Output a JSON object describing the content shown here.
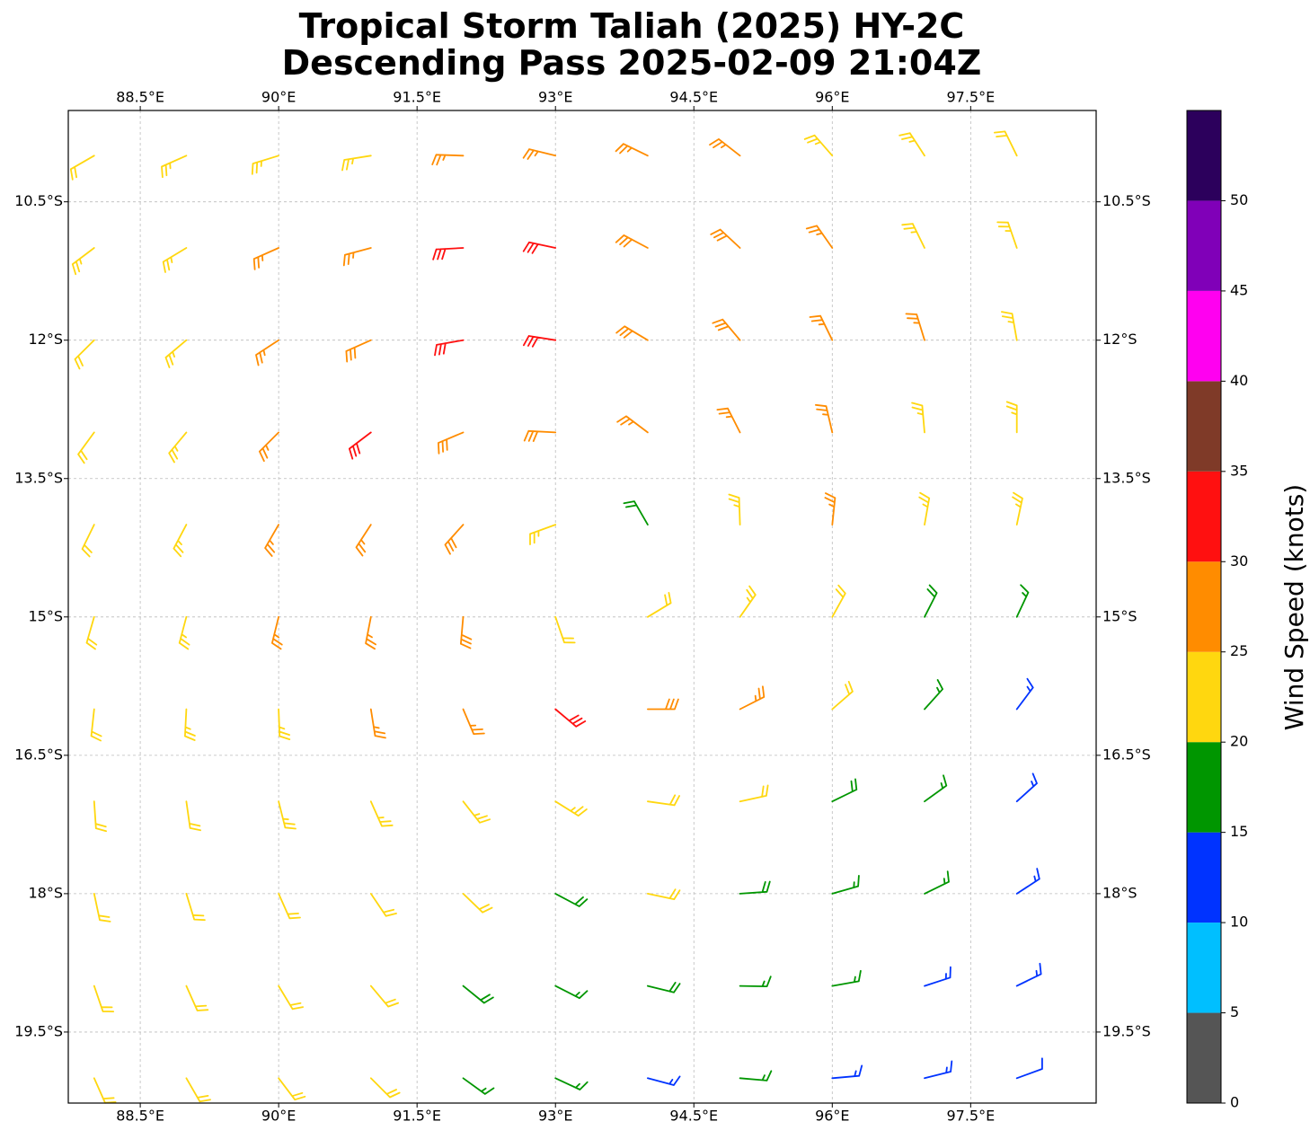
{
  "map": {
    "title": [
      "Tropical Storm Taliah (2025) HY-2C",
      "Descending Pass 2025-02-09 21:04Z"
    ],
    "xlim": [
      87.72,
      98.86
    ],
    "ylim": [
      -20.27,
      -9.51
    ],
    "xticks": [
      {
        "value": 88.5,
        "label": "88.5°E"
      },
      {
        "value": 90,
        "label": "90°E"
      },
      {
        "value": 91.5,
        "label": "91.5°E"
      },
      {
        "value": 93,
        "label": "93°E"
      },
      {
        "value": 94.5,
        "label": "94.5°E"
      },
      {
        "value": 96,
        "label": "96°E"
      },
      {
        "value": 97.5,
        "label": "97.5°E"
      }
    ],
    "yticks": [
      {
        "value": -10.5,
        "label": "10.5°S"
      },
      {
        "value": -12,
        "label": "12°S"
      },
      {
        "value": -13.5,
        "label": "13.5°S"
      },
      {
        "value": -15,
        "label": "15°S"
      },
      {
        "value": -16.5,
        "label": "16.5°S"
      },
      {
        "value": -18,
        "label": "18°S"
      },
      {
        "value": -19.5,
        "label": "19.5°S"
      }
    ],
    "grid": true,
    "colorbar": {
      "label": "Wind Speed (knots)",
      "clim": [
        0,
        55
      ],
      "ticks": [
        0,
        5,
        10,
        15,
        20,
        25,
        30,
        35,
        40,
        45,
        50
      ],
      "colors": [
        "#555555",
        "#00bfff",
        "#0033ff",
        "#009600",
        "#ffd70f",
        "#ff8c00",
        "#ff1010",
        "#7f3a28",
        "#ff00f0",
        "#8000b8",
        "#2c005c"
      ]
    },
    "barbs": {
      "lon": [
        88,
        89,
        90,
        91,
        92,
        93,
        94,
        95,
        96,
        97,
        98
      ],
      "lat": [
        -10,
        -11,
        -12,
        -13,
        -14,
        -15,
        -16,
        -17,
        -18,
        -19,
        -20
      ],
      "speed": [
        [
          22,
          23,
          23,
          24,
          26,
          27,
          27,
          26,
          24,
          23,
          22
        ],
        [
          23,
          24,
          26,
          27,
          32,
          31,
          28,
          28,
          27,
          24,
          23
        ],
        [
          22,
          24,
          26,
          28,
          32,
          31,
          29,
          28,
          27,
          26,
          23
        ],
        [
          22,
          23,
          26,
          31,
          29,
          28,
          27,
          27,
          26,
          24,
          23
        ],
        [
          22,
          24,
          26,
          27,
          28,
          23,
          18,
          23,
          26,
          24,
          23
        ],
        [
          22,
          23,
          25,
          27,
          29,
          22,
          21,
          24,
          22,
          18,
          17
        ],
        [
          22,
          23,
          24,
          26,
          27,
          31,
          28,
          26,
          22,
          17,
          14
        ],
        [
          22,
          22,
          23,
          23,
          24,
          23,
          22,
          21,
          18,
          16,
          13
        ],
        [
          22,
          22,
          22,
          22,
          21,
          19,
          21,
          18,
          17,
          16,
          13
        ],
        [
          22,
          22,
          22,
          21,
          18,
          17,
          18,
          17,
          16,
          14,
          13
        ],
        [
          22,
          22,
          21,
          21,
          17,
          16,
          14,
          16,
          14,
          13,
          12
        ]
      ],
      "direction": [
        [
          240,
          246,
          253,
          261,
          272,
          284,
          296,
          308,
          319,
          327,
          334
        ],
        [
          233,
          239,
          246,
          255,
          267,
          282,
          298,
          313,
          325,
          334,
          341
        ],
        [
          225,
          230,
          237,
          246,
          260,
          279,
          301,
          320,
          334,
          343,
          350
        ],
        [
          216,
          220,
          225,
          233,
          247,
          273,
          307,
          333,
          347,
          355,
          0
        ],
        [
          206,
          208,
          210,
          213,
          222,
          250,
          330,
          358,
          6,
          10,
          12
        ],
        [
          196,
          195,
          194,
          191,
          185,
          161,
          59,
          35,
          29,
          27,
          25
        ],
        [
          186,
          183,
          178,
          171,
          157,
          130,
          90,
          63,
          49,
          42,
          37
        ],
        [
          176,
          172,
          166,
          156,
          142,
          122,
          98,
          78,
          64,
          54,
          48
        ],
        [
          168,
          163,
          156,
          146,
          134,
          118,
          102,
          86,
          74,
          64,
          57
        ],
        [
          161,
          156,
          149,
          140,
          129,
          117,
          104,
          91,
          80,
          72,
          64
        ],
        [
          156,
          150,
          143,
          135,
          126,
          115,
          105,
          95,
          85,
          76,
          70
        ]
      ]
    }
  }
}
